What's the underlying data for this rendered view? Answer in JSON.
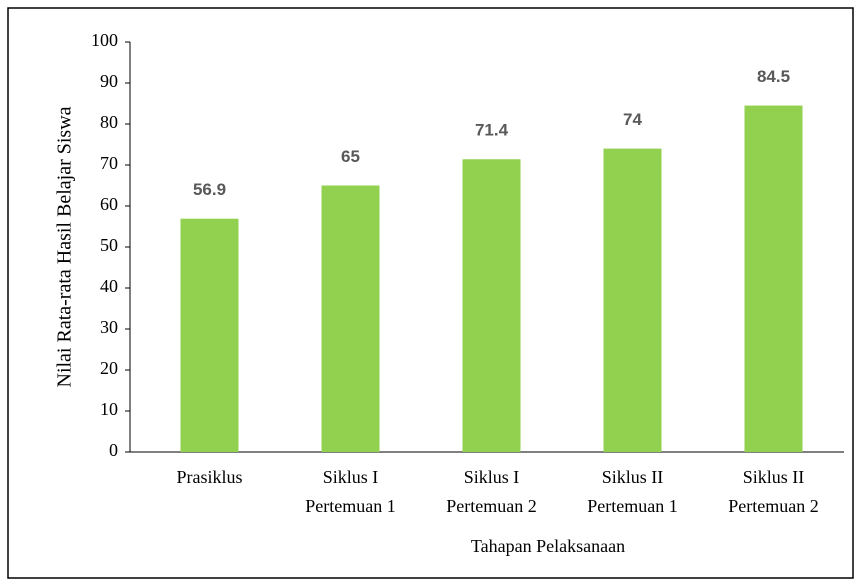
{
  "chart_data": {
    "type": "bar",
    "categories": [
      [
        "Prasiklus"
      ],
      [
        "Siklus I",
        "Pertemuan 1"
      ],
      [
        "Siklus I",
        "Pertemuan 2"
      ],
      [
        "Siklus II",
        "Pertemuan 1"
      ],
      [
        "Siklus II",
        "Pertemuan 2"
      ]
    ],
    "values": [
      56.9,
      65,
      71.4,
      74,
      84.5
    ],
    "color": "#92d050",
    "xlabel": "Tahapan Pelaksanaan",
    "ylabel": "Nilai Rata-rata Hasil Belajar Siswa",
    "ylim": [
      0,
      100
    ],
    "yticks": [
      0,
      10,
      20,
      30,
      40,
      50,
      60,
      70,
      80,
      90,
      100
    ],
    "grid": false
  }
}
